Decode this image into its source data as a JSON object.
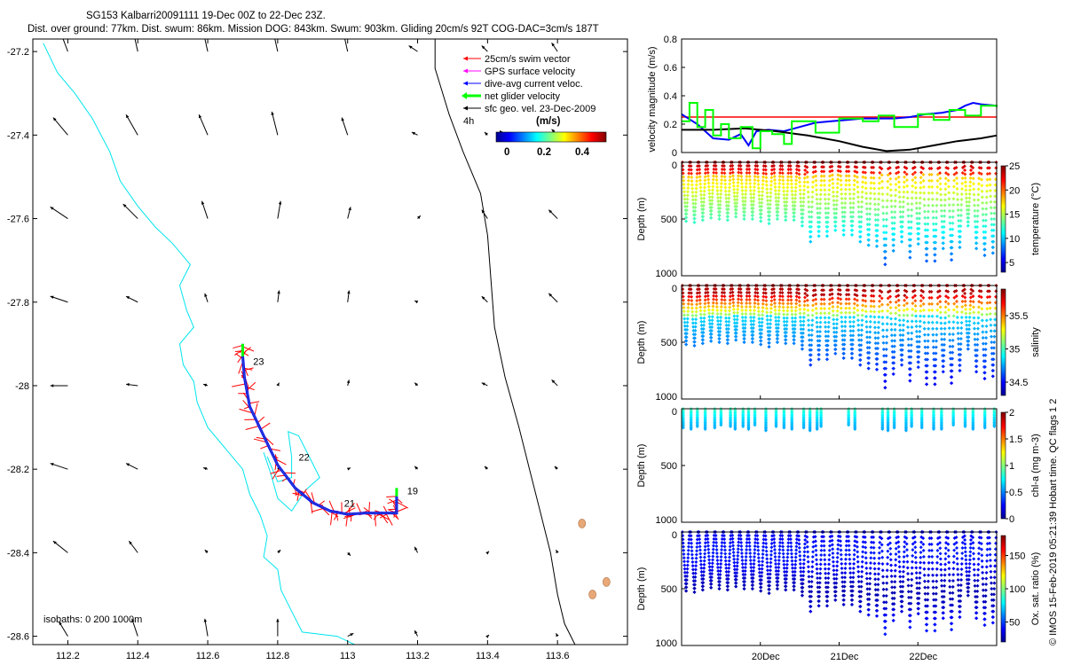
{
  "header": {
    "line1": "SG153 Kalbarri20091111 19-Dec 00Z to 22-Dec 23Z.",
    "line2": "Dist. over ground: 77km. Dist. swum: 86km. Mission DOG: 843km. Swum: 903km. Gliding 20cm/s 92T COG-DAC=3cm/s 187T"
  },
  "credit": "© IMOS 15-Feb-2019 05:21:39 Hobart time. QC flags 1  2",
  "colors": {
    "swim": "#ff0000",
    "gps": "#ff00ff",
    "dac": "#0000ff",
    "net": "#00ff00",
    "sfc": "#000000",
    "coast": "#00e5ee",
    "isobath": "#000000",
    "hline": "#ff0000"
  },
  "chart_data": [
    {
      "type": "quiver",
      "name": "map",
      "xlim": [
        112.1,
        113.8
      ],
      "ylim": [
        -28.62,
        -27.17
      ],
      "xticks": [
        112.2,
        112.4,
        112.6,
        112.8,
        113,
        113.2,
        113.4,
        113.6
      ],
      "xtick_labels": [
        "112.2",
        "112.4",
        "112.6",
        "112.8",
        "113",
        "113.2",
        "113.4",
        "113.6"
      ],
      "yticks": [
        -27.2,
        -27.4,
        -27.6,
        -27.8,
        -28,
        -28.2,
        -28.4,
        -28.6
      ],
      "ytick_labels": [
        "-27.2",
        "-27.4",
        "-27.6",
        "-27.8",
        "-28",
        "-28.2",
        "-28.4",
        "-28.6"
      ],
      "legend": {
        "entries": [
          "25cm/s swim vector",
          "GPS surface velocity",
          "dive-avg current veloc.",
          "net glider velocity",
          "sfc geo. vel. 23-Dec-2009"
        ],
        "time_label": "4h",
        "colorbar_title": "(m/s)",
        "colorbar_ticks": [
          "0",
          "0.2",
          "0.4"
        ]
      },
      "isobaths_label": "isobaths: 0   200  1000m",
      "day_labels": [
        {
          "text": "19",
          "lon": 113.17,
          "lat": -28.26
        },
        {
          "text": "21",
          "lon": 112.99,
          "lat": -28.29
        },
        {
          "text": "22",
          "lon": 112.86,
          "lat": -28.18
        },
        {
          "text": "23",
          "lon": 112.73,
          "lat": -27.95
        }
      ],
      "track": [
        [
          113.14,
          -28.265
        ],
        [
          113.14,
          -28.305
        ],
        [
          113.1,
          -28.305
        ],
        [
          113.05,
          -28.305
        ],
        [
          113,
          -28.308
        ],
        [
          112.95,
          -28.3
        ],
        [
          112.9,
          -28.28
        ],
        [
          112.85,
          -28.245
        ],
        [
          112.8,
          -28.19
        ],
        [
          112.76,
          -28.12
        ],
        [
          112.72,
          -28.05
        ],
        [
          112.705,
          -27.98
        ],
        [
          112.7,
          -27.93
        ],
        [
          112.7,
          -27.9
        ]
      ],
      "coast_200m": [
        [
          112.13,
          -27.18
        ],
        [
          112.17,
          -27.25
        ],
        [
          112.22,
          -27.3
        ],
        [
          112.27,
          -27.36
        ],
        [
          112.32,
          -27.44
        ],
        [
          112.35,
          -27.51
        ],
        [
          112.4,
          -27.57
        ],
        [
          112.45,
          -27.62
        ],
        [
          112.5,
          -27.66
        ],
        [
          112.55,
          -27.71
        ],
        [
          112.52,
          -27.76
        ],
        [
          112.54,
          -27.82
        ],
        [
          112.56,
          -27.86
        ],
        [
          112.52,
          -27.9
        ],
        [
          112.53,
          -27.95
        ],
        [
          112.56,
          -27.99
        ],
        [
          112.57,
          -28.04
        ],
        [
          112.6,
          -28.1
        ],
        [
          112.66,
          -28.16
        ],
        [
          112.7,
          -28.2
        ],
        [
          112.72,
          -28.26
        ],
        [
          112.75,
          -28.31
        ],
        [
          112.77,
          -28.36
        ],
        [
          112.76,
          -28.41
        ],
        [
          112.8,
          -28.44
        ],
        [
          112.81,
          -28.49
        ],
        [
          112.84,
          -28.54
        ],
        [
          112.87,
          -28.59
        ],
        [
          112.97,
          -28.6
        ],
        [
          113.02,
          -28.62
        ]
      ],
      "coast_200m_loop": [
        [
          112.76,
          -28.16
        ],
        [
          112.78,
          -28.21
        ],
        [
          112.8,
          -28.27
        ],
        [
          112.84,
          -28.3
        ],
        [
          112.88,
          -28.25
        ],
        [
          112.92,
          -28.22
        ],
        [
          112.89,
          -28.17
        ],
        [
          112.86,
          -28.12
        ],
        [
          112.83,
          -28.11
        ],
        [
          112.84,
          -28.17
        ],
        [
          112.84,
          -28.22
        ],
        [
          112.8,
          -28.23
        ],
        [
          112.77,
          -28.17
        ]
      ],
      "coast_1000m": [
        [
          113.25,
          -27.17
        ],
        [
          113.25,
          -27.24
        ],
        [
          113.29,
          -27.35
        ],
        [
          113.33,
          -27.44
        ],
        [
          113.38,
          -27.54
        ],
        [
          113.4,
          -27.64
        ],
        [
          113.41,
          -27.75
        ],
        [
          113.42,
          -27.86
        ],
        [
          113.45,
          -27.98
        ],
        [
          113.49,
          -28.1
        ],
        [
          113.52,
          -28.2
        ],
        [
          113.55,
          -28.3
        ],
        [
          113.58,
          -28.4
        ],
        [
          113.6,
          -28.5
        ],
        [
          113.62,
          -28.57
        ],
        [
          113.65,
          -28.62
        ]
      ],
      "islands": [
        [
          113.67,
          -28.33
        ],
        [
          113.7,
          -28.5
        ],
        [
          113.74,
          -28.47
        ]
      ],
      "sfc_arrows": [
        [
          112.2,
          -27.2,
          -0.03,
          0.08
        ],
        [
          112.4,
          -27.2,
          -0.02,
          0.09
        ],
        [
          112.6,
          -27.2,
          -0.02,
          0.09
        ],
        [
          112.8,
          -27.2,
          -0.02,
          0.09
        ],
        [
          113,
          -27.2,
          -0.02,
          0.09
        ],
        [
          113.2,
          -27.2,
          -0.03,
          0.02
        ],
        [
          113.4,
          -27.2,
          -0.02,
          0.02
        ],
        [
          113.6,
          -27.2,
          -0.02,
          0.03
        ],
        [
          112.2,
          -27.4,
          -0.05,
          0.06
        ],
        [
          112.4,
          -27.4,
          -0.04,
          0.07
        ],
        [
          112.6,
          -27.4,
          -0.03,
          0.07
        ],
        [
          112.8,
          -27.4,
          -0.02,
          0.08
        ],
        [
          113,
          -27.4,
          -0.02,
          0.06
        ],
        [
          113.2,
          -27.4,
          -0.02,
          0.01
        ],
        [
          113.4,
          -27.4,
          -0.01,
          0.01
        ],
        [
          113.6,
          -27.4,
          -0.02,
          0.02
        ],
        [
          112.2,
          -27.6,
          -0.06,
          0.04
        ],
        [
          112.4,
          -27.6,
          -0.05,
          0.05
        ],
        [
          112.6,
          -27.6,
          -0.02,
          0.06
        ],
        [
          112.8,
          -27.6,
          0.01,
          0.06
        ],
        [
          113,
          -27.6,
          0.01,
          0.04
        ],
        [
          113.2,
          -27.6,
          0.01,
          0.01
        ],
        [
          113.4,
          -27.6,
          -0.02,
          0.03
        ],
        [
          113.6,
          -27.6,
          -0.03,
          0.03
        ],
        [
          112.2,
          -27.8,
          -0.06,
          0.02
        ],
        [
          112.4,
          -27.8,
          -0.04,
          0.02
        ],
        [
          112.6,
          -27.8,
          -0.01,
          0.03
        ],
        [
          112.8,
          -27.8,
          0.005,
          0.04
        ],
        [
          113,
          -27.8,
          0.005,
          0.04
        ],
        [
          113.2,
          -27.8,
          -0.01,
          0.005
        ],
        [
          113.4,
          -27.8,
          -0.02,
          0.02
        ],
        [
          113.6,
          -27.8,
          -0.03,
          0.03
        ],
        [
          112.2,
          -28,
          -0.06,
          0
        ],
        [
          112.4,
          -28,
          -0.04,
          0.005
        ],
        [
          112.6,
          -28,
          -0.015,
          0.005
        ],
        [
          112.8,
          -28,
          0.005,
          0.01
        ],
        [
          113,
          -28,
          0.005,
          0.02
        ],
        [
          113.2,
          -28,
          -0.01,
          0.01
        ],
        [
          113.4,
          -28,
          -0.02,
          0.01
        ],
        [
          113.6,
          -28,
          -0.02,
          0.02
        ],
        [
          112.2,
          -28.2,
          -0.06,
          0.02
        ],
        [
          112.4,
          -28.2,
          -0.04,
          0.02
        ],
        [
          112.6,
          -28.2,
          -0.015,
          0.005
        ],
        [
          112.8,
          -28.2,
          0.01,
          0.005
        ],
        [
          113,
          -28.2,
          0.01,
          0.005
        ],
        [
          113.2,
          -28.2,
          -0.01,
          0.01
        ],
        [
          113.4,
          -28.2,
          -0.01,
          0.01
        ],
        [
          113.6,
          -28.2,
          -0.01,
          0.01
        ],
        [
          112.2,
          -28.4,
          -0.05,
          0.04
        ],
        [
          112.4,
          -28.4,
          -0.03,
          0.04
        ],
        [
          112.6,
          -28.4,
          -0.01,
          0.01
        ],
        [
          112.8,
          -28.4,
          0.01,
          0.01
        ],
        [
          113,
          -28.4,
          0.01,
          -0.01
        ],
        [
          113.2,
          -28.4,
          -0.01,
          0.02
        ],
        [
          113.4,
          -28.4,
          0.005,
          0.005
        ],
        [
          113.6,
          -28.4,
          -0.005,
          0.01
        ],
        [
          112.2,
          -28.6,
          -0.03,
          0.05
        ],
        [
          112.4,
          -28.6,
          -0.02,
          0.06
        ],
        [
          112.6,
          -28.6,
          -0.01,
          0.06
        ],
        [
          112.8,
          -28.6,
          0,
          0.06
        ],
        [
          113,
          -28.6,
          0.02,
          0.01
        ],
        [
          113.2,
          -28.6,
          -0.01,
          0.02
        ],
        [
          113.4,
          -28.6,
          0.005,
          0.005
        ],
        [
          113.6,
          -28.6,
          -0.005,
          0.01
        ]
      ]
    },
    {
      "type": "line",
      "name": "velocity",
      "ylabel": "velocity magnitude (m/s)",
      "xlim": [
        19,
        23
      ],
      "ylim": [
        0,
        0.8
      ],
      "yticks": [
        "0",
        "0.2",
        "0.4",
        "0.6",
        "0.8"
      ],
      "hline": 0.25,
      "series": [
        {
          "name": "dive-avg current",
          "color": "#0000ff",
          "x": [
            19,
            19.2,
            19.4,
            19.6,
            19.75,
            19.85,
            19.95,
            20.1,
            20.3,
            20.5,
            20.7,
            20.9,
            21.1,
            21.3,
            21.5,
            21.7,
            21.9,
            22.1,
            22.3,
            22.5,
            22.6,
            22.7,
            22.8,
            23
          ],
          "y": [
            0.27,
            0.2,
            0.1,
            0.09,
            0.13,
            0.05,
            0.15,
            0.16,
            0.15,
            0.18,
            0.21,
            0.22,
            0.23,
            0.24,
            0.24,
            0.24,
            0.25,
            0.27,
            0.28,
            0.3,
            0.33,
            0.35,
            0.34,
            0.33
          ]
        },
        {
          "name": "sfc geo",
          "color": "#000000",
          "x": [
            19,
            19.4,
            19.8,
            20.2,
            20.6,
            21,
            21.3,
            21.6,
            21.9,
            22.2,
            22.5,
            22.8,
            23
          ],
          "y": [
            0.16,
            0.16,
            0.17,
            0.15,
            0.12,
            0.08,
            0.04,
            0.01,
            0.02,
            0.05,
            0.08,
            0.1,
            0.12
          ]
        },
        {
          "name": "net glider",
          "color": "#00ff00",
          "x": [
            19,
            19.1,
            19.2,
            19.3,
            19.4,
            19.5,
            19.6,
            19.75,
            19.9,
            20,
            20.15,
            20.3,
            20.4,
            20.55,
            20.7,
            21,
            21.3,
            21.5,
            21.7,
            22,
            22.2,
            22.4,
            22.6,
            22.8,
            23
          ],
          "y": [
            0.22,
            0.35,
            0.18,
            0.3,
            0.12,
            0.2,
            0.1,
            0.18,
            0.03,
            0.15,
            0.13,
            0.06,
            0.22,
            0.22,
            0.14,
            0.24,
            0.22,
            0.26,
            0.18,
            0.27,
            0.23,
            0.3,
            0.26,
            0.33,
            0.32
          ]
        }
      ]
    },
    {
      "type": "scatter",
      "name": "temperature",
      "ylabel": "Depth (m)",
      "colorbar_label": "temperature (°C)",
      "colorbar_ticks": [
        "5",
        "10",
        "15",
        "20",
        "25"
      ],
      "clim": [
        3,
        25
      ],
      "ylim": [
        0,
        1000
      ],
      "yticks": [
        "0",
        "500",
        "1000"
      ],
      "n_dives": 38,
      "dive_depths": [
        520,
        530,
        510,
        490,
        500,
        510,
        480,
        500,
        500,
        520,
        540,
        500,
        510,
        510,
        560,
        700,
        650,
        650,
        600,
        640,
        640,
        700,
        730,
        740,
        900,
        780,
        700,
        840,
        720,
        870,
        870,
        760,
        860,
        750,
        560,
        760,
        820,
        800
      ]
    },
    {
      "type": "scatter",
      "name": "salinity",
      "ylabel": "Depth (m)",
      "colorbar_label": "salinity",
      "colorbar_ticks": [
        "34.5",
        "35",
        "35.5"
      ],
      "clim": [
        34.3,
        35.9
      ],
      "ylim": [
        0,
        1000
      ],
      "yticks": [
        "0",
        "500",
        "1000"
      ],
      "n_dives": 38,
      "dive_depths": [
        520,
        530,
        510,
        490,
        500,
        510,
        480,
        500,
        500,
        520,
        540,
        500,
        510,
        510,
        560,
        700,
        650,
        650,
        600,
        640,
        640,
        700,
        730,
        740,
        900,
        780,
        700,
        840,
        720,
        870,
        870,
        760,
        860,
        750,
        560,
        760,
        820,
        800
      ]
    },
    {
      "type": "scatter",
      "name": "chlorophyll",
      "ylabel": "Depth (m)",
      "colorbar_label": "chl-a (mg m-3)",
      "colorbar_ticks": [
        "0",
        "0.5",
        "1",
        "1.5",
        "2"
      ],
      "clim": [
        0,
        2
      ],
      "ylim": [
        0,
        1000
      ],
      "yticks": [
        "0",
        "500",
        "1000"
      ],
      "casts_x": [
        19.02,
        19.12,
        19.2,
        19.3,
        19.42,
        19.5,
        19.62,
        19.68,
        19.78,
        19.85,
        19.93,
        20.07,
        20.2,
        20.3,
        20.4,
        20.55,
        20.63,
        20.72,
        20.77,
        21.12,
        21.2,
        21.55,
        21.62,
        21.7,
        21.85,
        21.92,
        22.05,
        22.2,
        22.3,
        22.45,
        22.6,
        22.7,
        22.85,
        22.97
      ],
      "casts_depth": [
        170,
        190,
        160,
        180,
        170,
        150,
        160,
        180,
        160,
        190,
        150,
        200,
        160,
        170,
        180,
        170,
        200,
        180,
        160,
        150,
        180,
        180,
        200,
        170,
        200,
        160,
        170,
        190,
        180,
        150,
        160,
        180,
        170,
        160
      ]
    },
    {
      "type": "scatter",
      "name": "oxygen",
      "ylabel": "Depth (m)",
      "colorbar_label": "Ox. sat. ratio (%)",
      "colorbar_ticks": [
        "50",
        "100",
        "150"
      ],
      "clim": [
        20,
        180
      ],
      "ylim": [
        0,
        1000
      ],
      "yticks": [
        "0",
        "500",
        "1000"
      ],
      "n_dives": 38,
      "dive_depths": [
        520,
        530,
        510,
        490,
        500,
        510,
        480,
        500,
        500,
        520,
        540,
        500,
        510,
        510,
        560,
        700,
        650,
        650,
        600,
        640,
        640,
        700,
        730,
        740,
        900,
        780,
        700,
        840,
        720,
        870,
        870,
        760,
        860,
        750,
        560,
        760,
        820,
        800
      ]
    },
    {
      "type": "axis",
      "name": "time-axis",
      "xlim": [
        19,
        23
      ],
      "xticks": [
        20,
        21,
        22
      ],
      "xtick_labels": [
        "20Dec",
        "21Dec",
        "22Dec"
      ]
    }
  ]
}
